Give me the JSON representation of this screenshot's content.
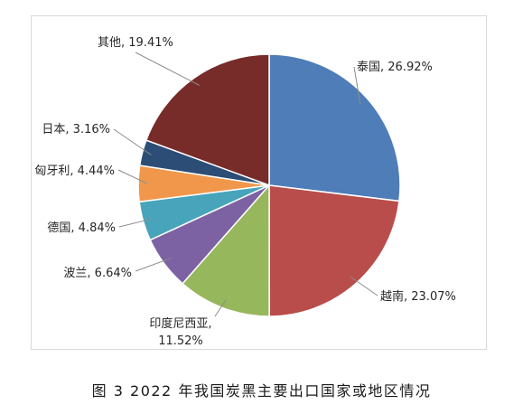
{
  "chart_data": {
    "type": "pie",
    "title": "",
    "caption": "图 3  2022 年我国炭黑主要出口国家或地区情况",
    "start_angle_deg": 0,
    "direction": "clockwise",
    "slices": [
      {
        "label": "泰国",
        "value": 26.92,
        "display": "26.92%",
        "color": "#4f7db8"
      },
      {
        "label": "越南",
        "value": 23.07,
        "display": "23.07%",
        "color": "#b94d4b"
      },
      {
        "label": "印度尼西亚",
        "value": 11.52,
        "display": "11.52%",
        "color": "#97b75c"
      },
      {
        "label": "波兰",
        "value": 6.64,
        "display": "6.64%",
        "color": "#7d62a3"
      },
      {
        "label": "德国",
        "value": 4.84,
        "display": "4.84%",
        "color": "#48a4bb"
      },
      {
        "label": "匈牙利",
        "value": 4.44,
        "display": "4.44%",
        "color": "#f0974b"
      },
      {
        "label": "日本",
        "value": 3.16,
        "display": "3.16%",
        "color": "#2c4d75"
      },
      {
        "label": "其他",
        "value": 19.41,
        "display": "19.41%",
        "color": "#772c2a"
      }
    ],
    "slice_border_color": "#ffffff",
    "label_color": "#262626",
    "leader_line_color": "#8c8c8c"
  }
}
